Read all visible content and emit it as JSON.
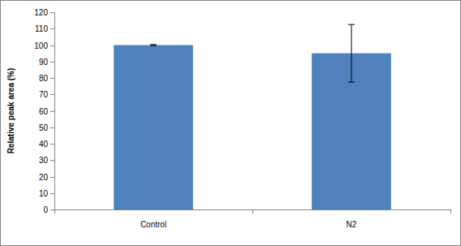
{
  "chart_data": {
    "type": "bar",
    "categories": [
      "Control",
      "N2"
    ],
    "values": [
      100,
      95
    ],
    "errors": [
      0.3,
      17.5
    ],
    "color": "#4f81bd",
    "ylabel": "Relative peak area (%)",
    "ylim": [
      0,
      120
    ],
    "yticks": [
      0,
      10,
      20,
      30,
      40,
      50,
      60,
      70,
      80,
      90,
      100,
      110,
      120
    ],
    "grid": false
  }
}
